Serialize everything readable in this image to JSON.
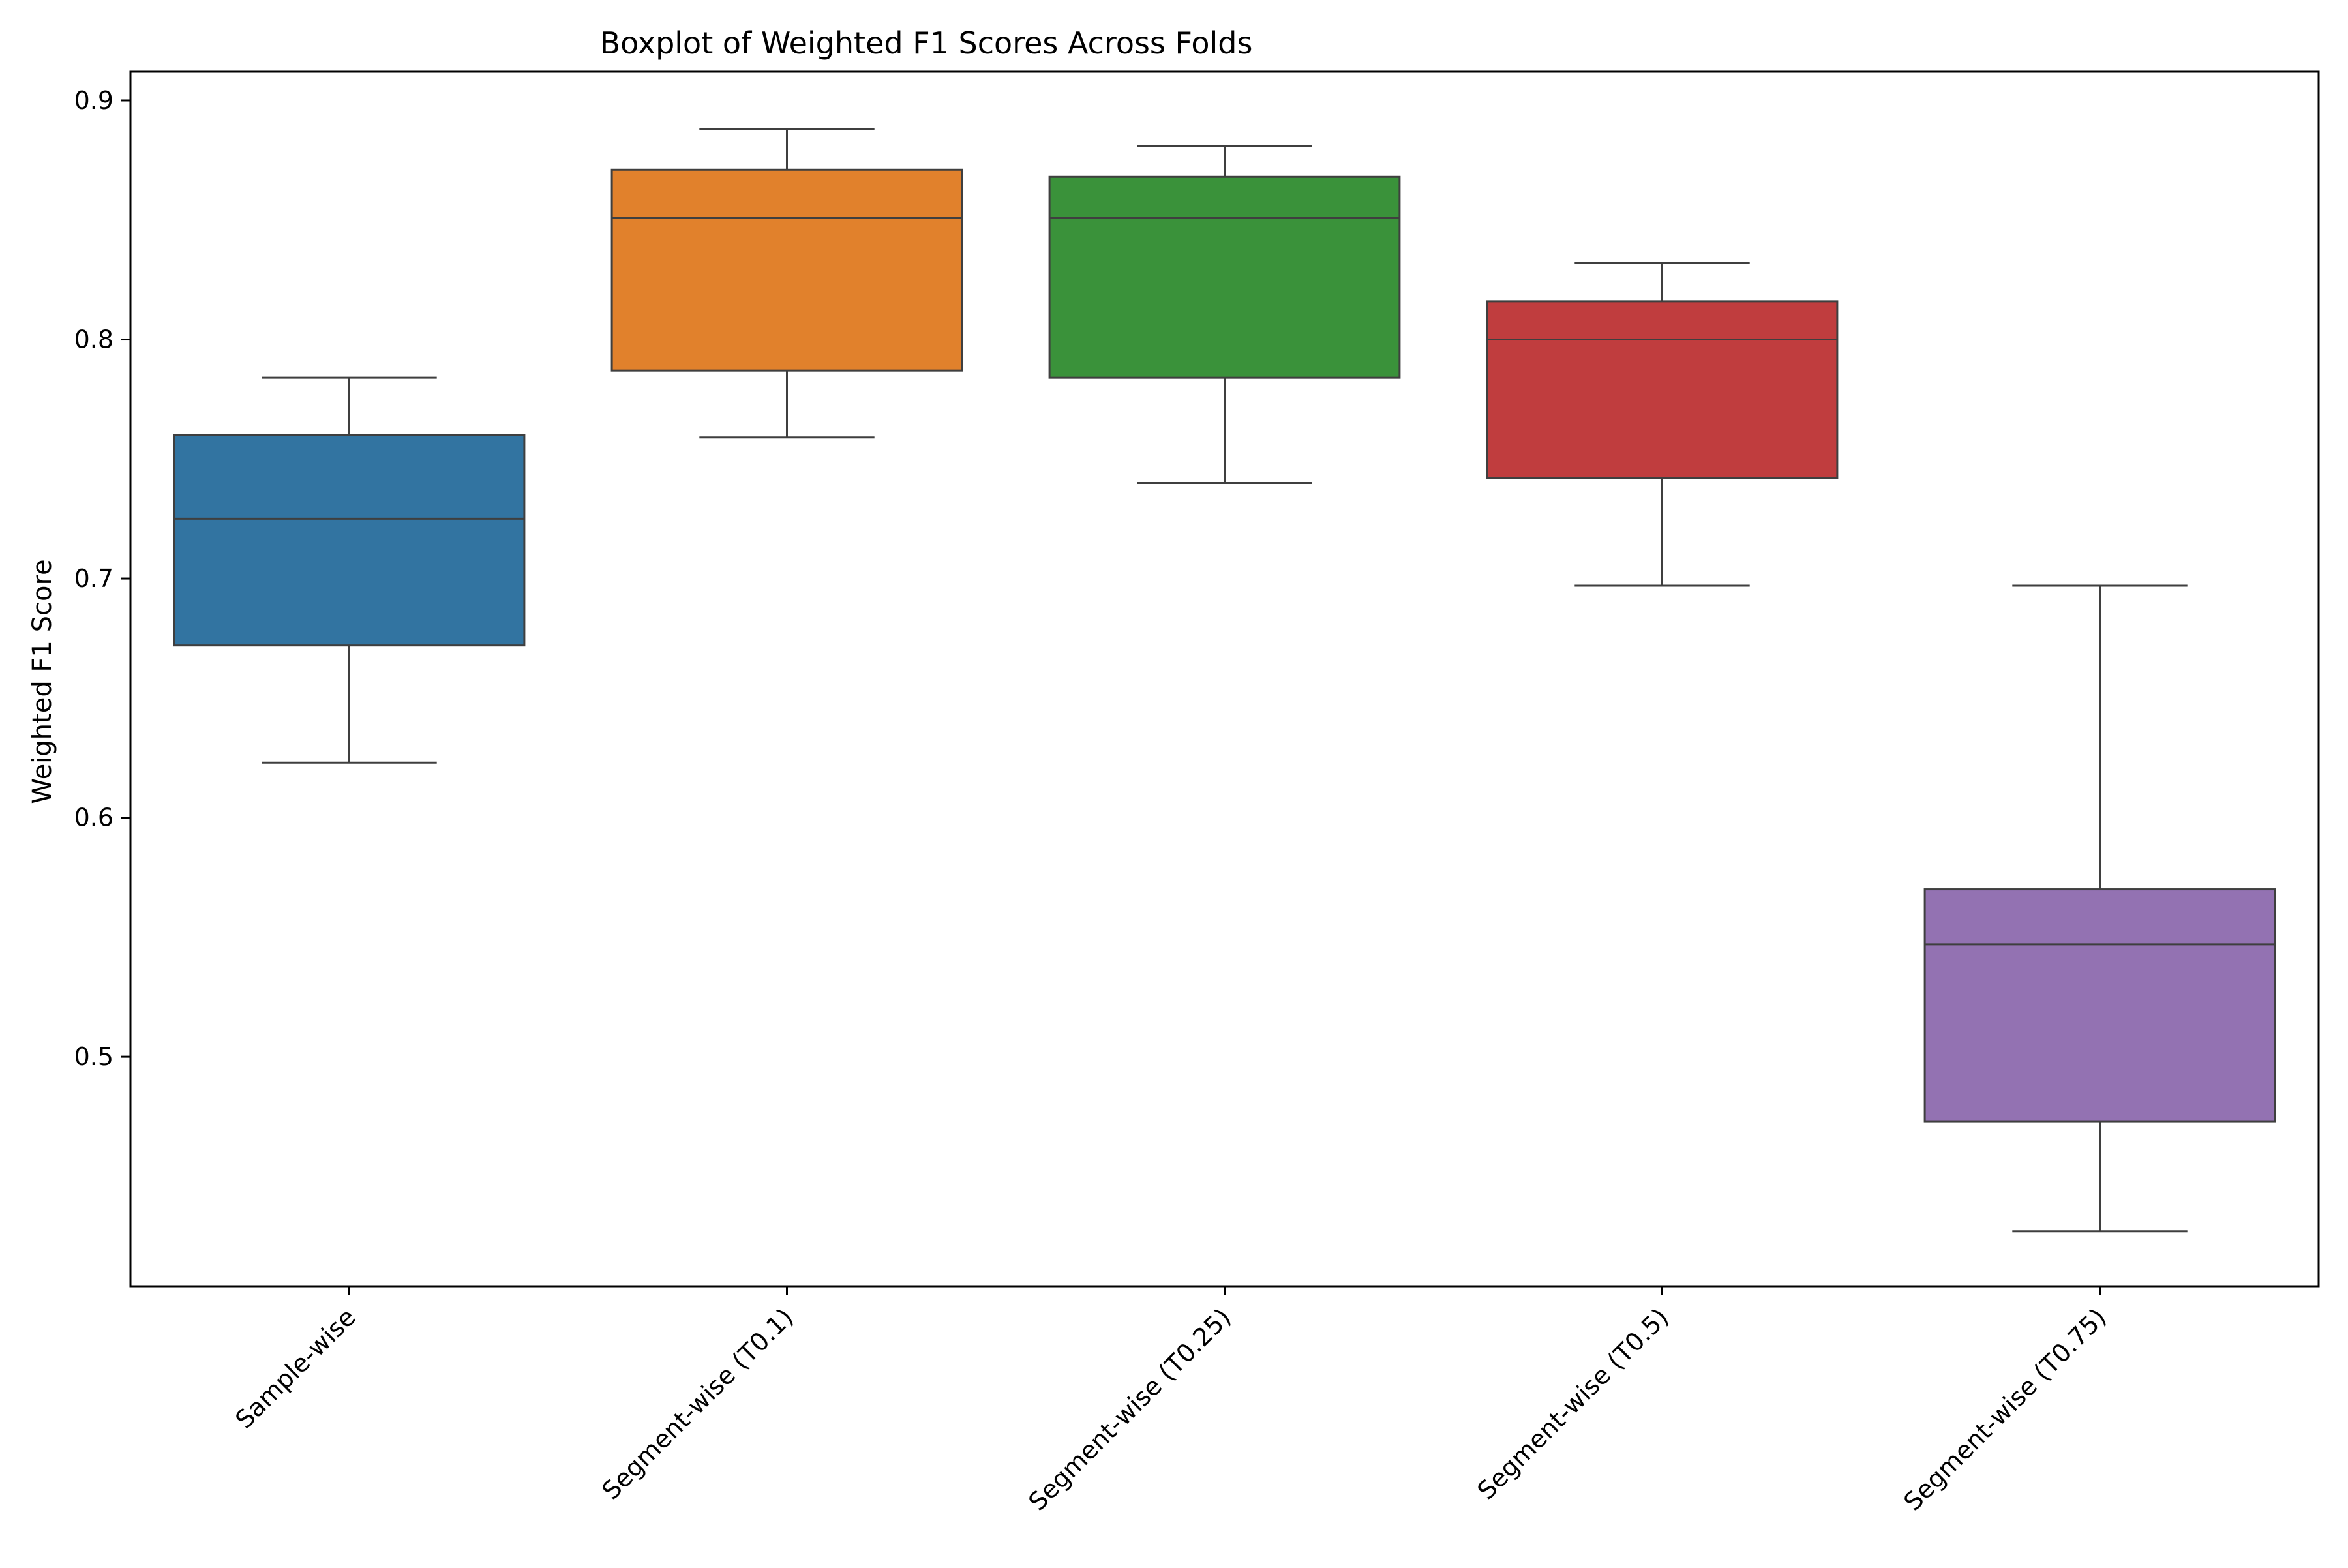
{
  "chart_data": {
    "type": "boxplot",
    "title": "Boxplot of Weighted F1 Scores Across Folds",
    "xlabel": "",
    "ylabel": "Weighted F1 Score",
    "ylim": [
      0.404,
      0.912
    ],
    "yticks": [
      "0.5",
      "0.6",
      "0.7",
      "0.8",
      "0.9"
    ],
    "grid": false,
    "categories": [
      "Sample-wise",
      "Segment-wise (T0.1)",
      "Segment-wise (T0.25)",
      "Segment-wise (T0.5)",
      "Segment-wise (T0.75)"
    ],
    "colors": [
      "#3274a1",
      "#e1812c",
      "#3a923a",
      "#c03d3e",
      "#9372b2"
    ],
    "series": [
      {
        "whisker_low": 0.623,
        "q1": 0.672,
        "median": 0.725,
        "q3": 0.76,
        "whisker_high": 0.784
      },
      {
        "whisker_low": 0.759,
        "q1": 0.787,
        "median": 0.851,
        "q3": 0.871,
        "whisker_high": 0.888
      },
      {
        "whisker_low": 0.74,
        "q1": 0.784,
        "median": 0.851,
        "q3": 0.868,
        "whisker_high": 0.881
      },
      {
        "whisker_low": 0.697,
        "q1": 0.742,
        "median": 0.8,
        "q3": 0.816,
        "whisker_high": 0.832
      },
      {
        "whisker_low": 0.427,
        "q1": 0.473,
        "median": 0.547,
        "q3": 0.57,
        "whisker_high": 0.697
      }
    ]
  }
}
